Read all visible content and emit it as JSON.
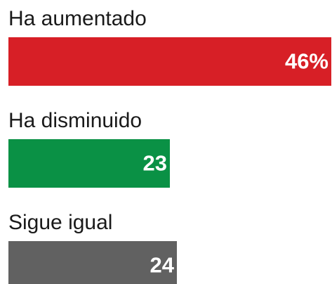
{
  "chart_data": {
    "type": "bar",
    "orientation": "horizontal",
    "categories": [
      "Ha aumentado",
      "Ha disminuido",
      "Sigue igual"
    ],
    "values": [
      46,
      23,
      24
    ],
    "value_labels": [
      "46%",
      "23",
      "24"
    ],
    "colors": [
      "#d71f26",
      "#0a9145",
      "#616161"
    ]
  }
}
